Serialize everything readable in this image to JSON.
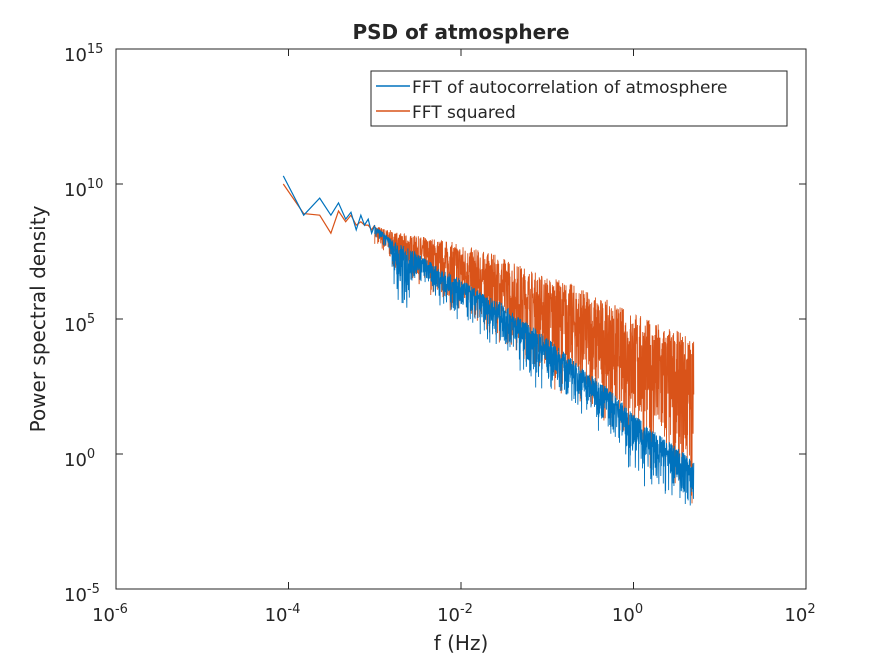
{
  "chart_data": {
    "type": "line",
    "title": "PSD of atmosphere",
    "xlabel": "f (Hz)",
    "ylabel": "Power spectral density",
    "xscale": "log",
    "yscale": "log",
    "xlim": [
      1e-06,
      100
    ],
    "ylim": [
      1e-05,
      1000000000000000
    ],
    "x_ticks": [
      {
        "value": 1e-06,
        "base": "10",
        "exp": "-6"
      },
      {
        "value": 0.0001,
        "base": "10",
        "exp": "-4"
      },
      {
        "value": 0.01,
        "base": "10",
        "exp": "-2"
      },
      {
        "value": 1,
        "base": "10",
        "exp": "0"
      },
      {
        "value": 100,
        "base": "10",
        "exp": "2"
      }
    ],
    "y_ticks": [
      {
        "value": 1e-05,
        "base": "10",
        "exp": "-5"
      },
      {
        "value": 1,
        "base": "10",
        "exp": "0"
      },
      {
        "value": 100000,
        "base": "10",
        "exp": "5"
      },
      {
        "value": 10000000000,
        "base": "10",
        "exp": "10"
      },
      {
        "value": 1000000000000000,
        "base": "10",
        "exp": "15"
      }
    ],
    "grid": false,
    "legend_position": "top-right",
    "series": [
      {
        "name": "FFT of autocorrelation of atmosphere",
        "color": "#0072BD",
        "x": [
          8.7e-05,
          0.00015,
          0.00023,
          0.00031,
          0.00038,
          0.00046,
          0.00053,
          0.00061,
          0.00069,
          0.00076,
          0.00084,
          0.00092,
          0.001,
          0.0015,
          0.002,
          0.003,
          0.005,
          0.007,
          0.01,
          0.02,
          0.03,
          0.05,
          0.07,
          0.1,
          0.2,
          0.3,
          0.5,
          0.7,
          1,
          1.5,
          2,
          3,
          4,
          5
        ],
        "y": [
          20000000000,
          700000000,
          3000000000,
          700000000,
          2000000000,
          500000000,
          900000000,
          200000000,
          700000000,
          300000000,
          500000000,
          150000000,
          300000000,
          100000000,
          60000000,
          30000000,
          10000000,
          5000000,
          3000000,
          700000,
          400000,
          100000,
          50000,
          20000,
          3000,
          1000,
          300,
          100,
          30,
          10,
          5,
          2,
          1,
          0.5
        ],
        "y_low": [
          20000000000,
          700000000,
          3000000000,
          500000000,
          1500000000,
          300000000,
          500000000,
          100000000,
          300000000,
          100000000,
          200000000,
          50000000,
          100000000,
          20000000,
          5000,
          2000000,
          300000,
          100000,
          30000,
          10000,
          3000,
          1000,
          100,
          100,
          30,
          10,
          3,
          1,
          0.1,
          0.03,
          0.01,
          0.01,
          0.003,
          0.001
        ]
      },
      {
        "name": "FFT squared",
        "color": "#D95319",
        "x": [
          8.7e-05,
          0.00015,
          0.00023,
          0.00031,
          0.00038,
          0.00046,
          0.00053,
          0.00061,
          0.00069,
          0.00076,
          0.00084,
          0.00092,
          0.001,
          0.0015,
          0.002,
          0.003,
          0.005,
          0.007,
          0.01,
          0.02,
          0.03,
          0.05,
          0.07,
          0.1,
          0.2,
          0.3,
          0.5,
          0.7,
          1,
          1.5,
          2,
          3,
          4,
          5
        ],
        "y": [
          10000000000,
          800000000,
          700000000,
          150000000,
          1000000000,
          400000000,
          700000000,
          300000000,
          400000000,
          300000000,
          300000000,
          200000000,
          300000000,
          200000000,
          150000000,
          120000000,
          100000000,
          80000000,
          60000000,
          30000000,
          20000000,
          10000000,
          6000000,
          4000000,
          2000000,
          1000000,
          500000,
          300000,
          200000,
          100000,
          70000,
          40000,
          30000,
          20000
        ],
        "y_low": [
          10000000000,
          800000000,
          700000000,
          150000000,
          1000000000,
          400000000,
          500000000,
          200000000,
          200000000,
          150000000,
          100000000,
          80000000,
          60000000,
          10000000,
          5000000,
          2000000,
          500000,
          200000,
          100000,
          20000,
          10000,
          3000,
          1000,
          300,
          100,
          30,
          10,
          3,
          1,
          0.3,
          0.1,
          0.05,
          0.03,
          0.01
        ]
      }
    ]
  }
}
